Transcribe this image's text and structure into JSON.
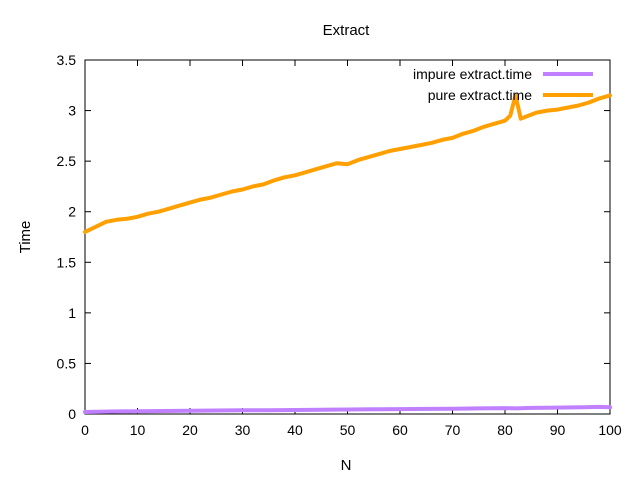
{
  "chart_data": {
    "type": "line",
    "title": "Extract",
    "xlabel": "N",
    "ylabel": "Time",
    "xlim": [
      0,
      100
    ],
    "ylim": [
      0,
      3.5
    ],
    "xticks": [
      0,
      10,
      20,
      30,
      40,
      50,
      60,
      70,
      80,
      90,
      100
    ],
    "yticks": [
      0,
      0.5,
      1,
      1.5,
      2,
      2.5,
      3,
      3.5
    ],
    "grid": false,
    "legend_position": "top-right",
    "series": [
      {
        "name": "impure extract.time",
        "color": "#c080ff",
        "x": [
          0,
          5,
          10,
          15,
          20,
          25,
          30,
          35,
          40,
          45,
          50,
          55,
          60,
          65,
          70,
          75,
          80,
          82,
          85,
          88,
          90,
          93,
          95,
          98,
          100
        ],
        "y": [
          0.02,
          0.025,
          0.028,
          0.03,
          0.032,
          0.035,
          0.037,
          0.038,
          0.04,
          0.042,
          0.044,
          0.046,
          0.048,
          0.05,
          0.052,
          0.055,
          0.058,
          0.055,
          0.06,
          0.062,
          0.063,
          0.065,
          0.067,
          0.07,
          0.066
        ]
      },
      {
        "name": "pure extract.time",
        "color": "#ffa000",
        "x": [
          0,
          2,
          4,
          6,
          8,
          10,
          12,
          14,
          16,
          18,
          20,
          22,
          24,
          26,
          28,
          30,
          32,
          34,
          36,
          38,
          40,
          42,
          44,
          46,
          48,
          50,
          52,
          54,
          56,
          58,
          60,
          62,
          64,
          66,
          68,
          70,
          72,
          74,
          76,
          78,
          80,
          81,
          82,
          83,
          84,
          86,
          88,
          90,
          92,
          94,
          96,
          98,
          100
        ],
        "y": [
          1.8,
          1.85,
          1.9,
          1.92,
          1.93,
          1.95,
          1.98,
          2.0,
          2.03,
          2.06,
          2.09,
          2.12,
          2.14,
          2.17,
          2.2,
          2.22,
          2.25,
          2.27,
          2.31,
          2.34,
          2.36,
          2.39,
          2.42,
          2.45,
          2.48,
          2.47,
          2.51,
          2.54,
          2.57,
          2.6,
          2.62,
          2.64,
          2.66,
          2.68,
          2.71,
          2.73,
          2.77,
          2.8,
          2.84,
          2.87,
          2.9,
          2.95,
          3.15,
          2.92,
          2.94,
          2.98,
          3.0,
          3.01,
          3.03,
          3.05,
          3.08,
          3.12,
          3.15
        ]
      }
    ]
  }
}
